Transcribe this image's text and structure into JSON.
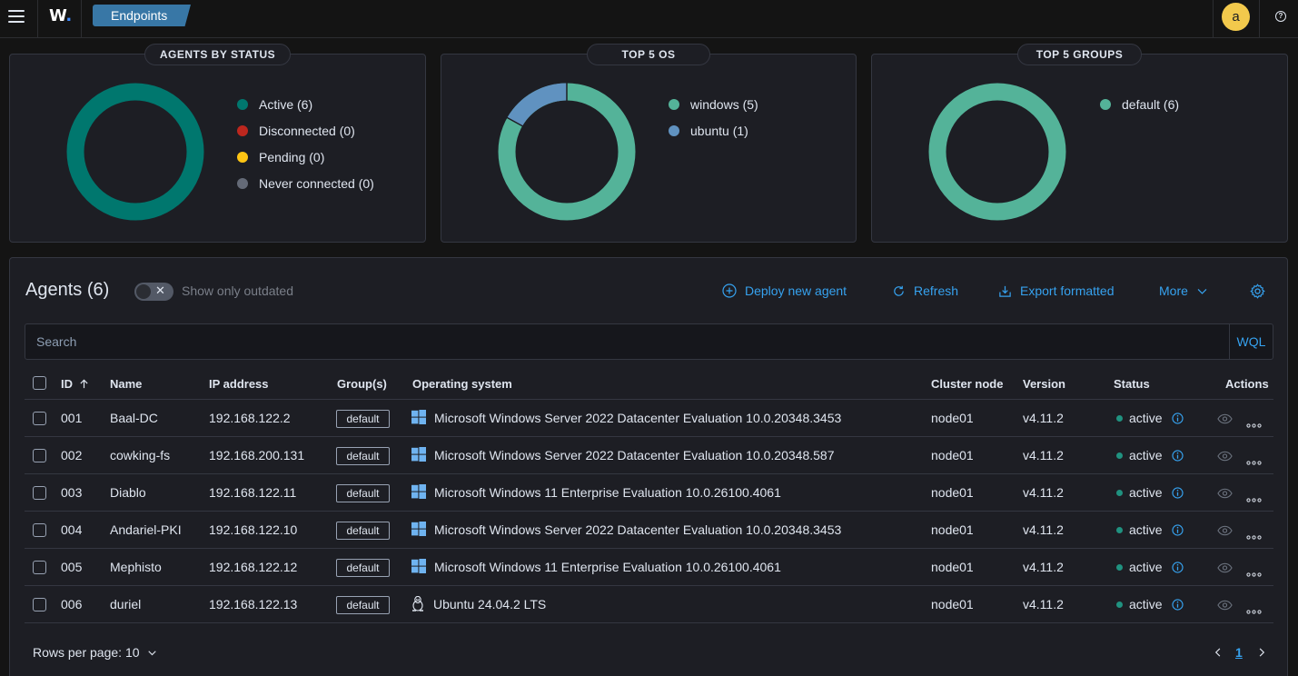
{
  "header": {
    "logo": "W",
    "breadcrumb": "Endpoints",
    "user_initial": "a",
    "help_glyph": "?"
  },
  "status_panel": {
    "title": "AGENTS BY STATUS",
    "legend": [
      {
        "label": "Active (6)",
        "color": "#00776e"
      },
      {
        "label": "Disconnected (0)",
        "color": "#bd271e"
      },
      {
        "label": "Pending (0)",
        "color": "#fec514"
      },
      {
        "label": "Never connected (0)",
        "color": "#646a77"
      }
    ]
  },
  "os_panel": {
    "title": "TOP 5 OS",
    "legend": [
      {
        "label": "windows (5)",
        "color": "#54b399"
      },
      {
        "label": "ubuntu (1)",
        "color": "#6092c0"
      }
    ]
  },
  "groups_panel": {
    "title": "TOP 5 GROUPS",
    "legend": [
      {
        "label": "default (6)",
        "color": "#54b399"
      }
    ]
  },
  "chart_data": [
    {
      "type": "pie",
      "title": "AGENTS BY STATUS",
      "categories": [
        "Active",
        "Disconnected",
        "Pending",
        "Never connected"
      ],
      "values": [
        6,
        0,
        0,
        0
      ]
    },
    {
      "type": "pie",
      "title": "TOP 5 OS",
      "categories": [
        "windows",
        "ubuntu"
      ],
      "values": [
        5,
        1
      ]
    },
    {
      "type": "pie",
      "title": "TOP 5 GROUPS",
      "categories": [
        "default"
      ],
      "values": [
        6
      ]
    }
  ],
  "agents": {
    "title": "Agents (6)",
    "toggle_label": "Show only outdated",
    "actions": {
      "deploy": "Deploy new agent",
      "refresh": "Refresh",
      "export": "Export formatted",
      "more": "More"
    },
    "search_placeholder": "Search",
    "wql": "WQL",
    "columns": {
      "id": "ID",
      "name": "Name",
      "ip": "IP address",
      "groups": "Group(s)",
      "os": "Operating system",
      "node": "Cluster node",
      "version": "Version",
      "status": "Status",
      "actions": "Actions"
    },
    "rows": [
      {
        "id": "001",
        "name": "Baal-DC",
        "ip": "192.168.122.2",
        "group": "default",
        "os_icon": "windows-icon",
        "os": "Microsoft Windows Server 2022 Datacenter Evaluation 10.0.20348.3453",
        "node": "node01",
        "version": "v4.11.2",
        "status": "active"
      },
      {
        "id": "002",
        "name": "cowking-fs",
        "ip": "192.168.200.131",
        "group": "default",
        "os_icon": "windows-icon",
        "os": "Microsoft Windows Server 2022 Datacenter Evaluation 10.0.20348.587",
        "node": "node01",
        "version": "v4.11.2",
        "status": "active"
      },
      {
        "id": "003",
        "name": "Diablo",
        "ip": "192.168.122.11",
        "group": "default",
        "os_icon": "windows-icon",
        "os": "Microsoft Windows 11 Enterprise Evaluation 10.0.26100.4061",
        "node": "node01",
        "version": "v4.11.2",
        "status": "active"
      },
      {
        "id": "004",
        "name": "Andariel-PKI",
        "ip": "192.168.122.10",
        "group": "default",
        "os_icon": "windows-icon",
        "os": "Microsoft Windows Server 2022 Datacenter Evaluation 10.0.20348.3453",
        "node": "node01",
        "version": "v4.11.2",
        "status": "active"
      },
      {
        "id": "005",
        "name": "Mephisto",
        "ip": "192.168.122.12",
        "group": "default",
        "os_icon": "windows-icon",
        "os": "Microsoft Windows 11 Enterprise Evaluation 10.0.26100.4061",
        "node": "node01",
        "version": "v4.11.2",
        "status": "active"
      },
      {
        "id": "006",
        "name": "duriel",
        "ip": "192.168.122.13",
        "group": "default",
        "os_icon": "linux-icon",
        "os": "Ubuntu 24.04.2 LTS",
        "node": "node01",
        "version": "v4.11.2",
        "status": "active"
      }
    ],
    "rows_per_page": "Rows per page: 10",
    "current_page": "1"
  }
}
